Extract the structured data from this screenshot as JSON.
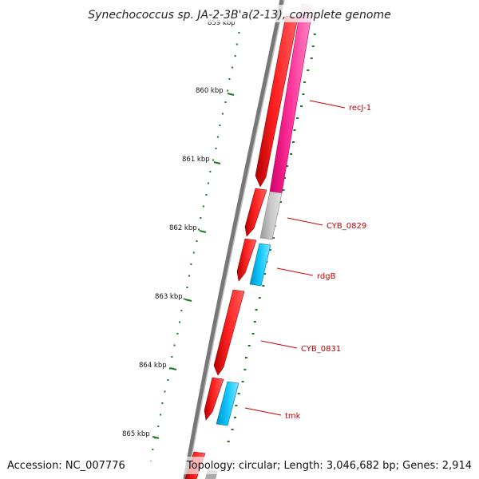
{
  "title": "Synechococcus sp. JA-2-3B'a(2-13), complete genome",
  "accession": "Accession: NC_007776",
  "topology": "Topology: circular; Length: 3,046,682 bp; Genes: 2,914",
  "kbp_ticks": [
    {
      "kbp": 859,
      "label": "859 kbp"
    },
    {
      "kbp": 860,
      "label": "860 kbp"
    },
    {
      "kbp": 861,
      "label": "861 kbp"
    },
    {
      "kbp": 862,
      "label": "862 kbp"
    },
    {
      "kbp": 863,
      "label": "863 kbp"
    },
    {
      "kbp": 864,
      "label": "864 kbp"
    },
    {
      "kbp": 865,
      "label": "865 kbp"
    }
  ],
  "gene_labels": [
    {
      "name": "recJ-1",
      "color": "#ff1493",
      "strand": "minus"
    },
    {
      "name": "CYB_0829",
      "color": "#bdbdbd",
      "strand": "minus"
    },
    {
      "name": "rdgB",
      "color": "#00bfff",
      "strand": "minus"
    },
    {
      "name": "CYB_0831",
      "color": "#ff0000",
      "strand": "plus"
    },
    {
      "name": "tmk",
      "color": "#00bfff",
      "strand": "minus"
    }
  ],
  "colors": {
    "cds_plus": "#ff0000",
    "gene_pink": "#ff1493",
    "gene_gray": "#bdbdbd",
    "gene_cyan": "#00bfff",
    "backbone": "#777777",
    "gc_skew": "#1a7a1a",
    "label_red": "#c00000"
  }
}
